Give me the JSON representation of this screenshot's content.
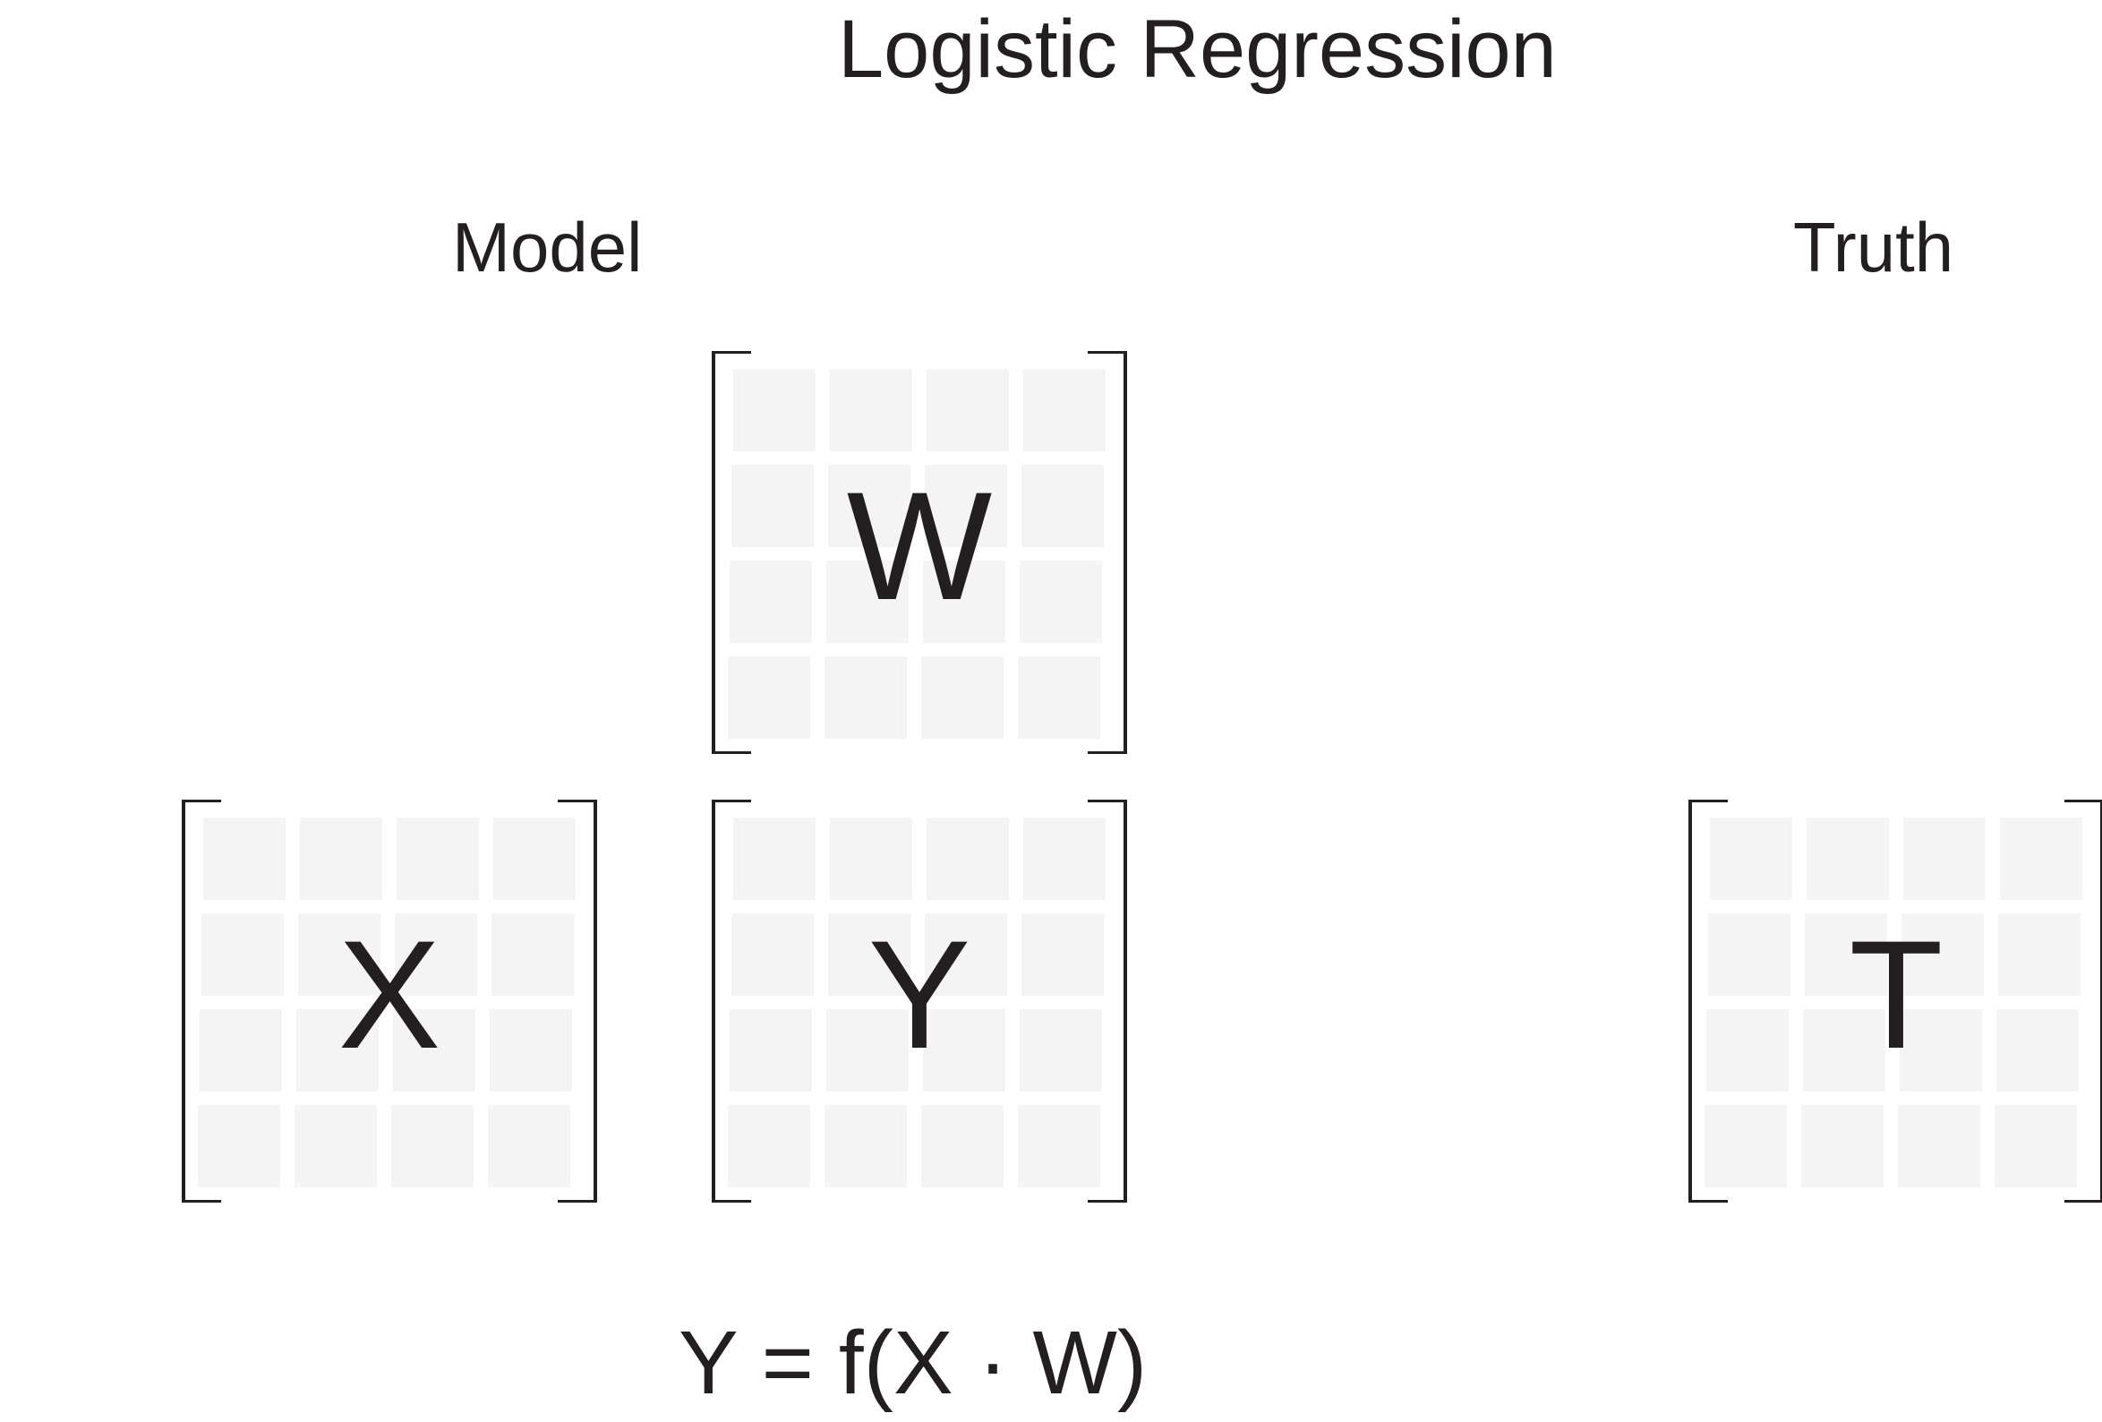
{
  "title": "Logistic Regression",
  "labels": {
    "model": "Model",
    "truth": "Truth"
  },
  "matrices": {
    "w": "W",
    "x": "X",
    "y": "Y",
    "t": "T"
  },
  "equation": "Y = f(X · W)",
  "colors": {
    "ink": "#231f20",
    "cell": "#f4f4f4",
    "background": "#ffffff"
  }
}
